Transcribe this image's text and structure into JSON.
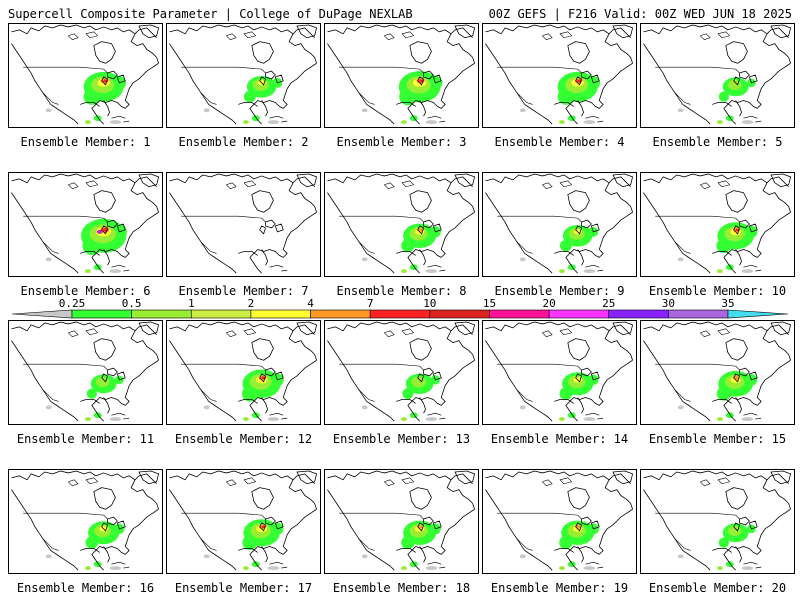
{
  "header": {
    "left": "Supercell Composite Parameter | College of DuPage NEXLAB",
    "right": "00Z GEFS | F216 Valid: 00Z WED JUN 18 2025"
  },
  "caption_prefix": "Ensemble Member: ",
  "members": [
    {
      "number": "1",
      "intensity": 0.8
    },
    {
      "number": "2",
      "intensity": 0.5
    },
    {
      "number": "3",
      "intensity": 0.85
    },
    {
      "number": "4",
      "intensity": 0.8
    },
    {
      "number": "5",
      "intensity": 0.4
    },
    {
      "number": "6",
      "intensity": 0.95
    },
    {
      "number": "7",
      "intensity": 0.0
    },
    {
      "number": "8",
      "intensity": 0.6
    },
    {
      "number": "9",
      "intensity": 0.5
    },
    {
      "number": "10",
      "intensity": 0.7
    },
    {
      "number": "11",
      "intensity": 0.4
    },
    {
      "number": "12",
      "intensity": 0.75
    },
    {
      "number": "13",
      "intensity": 0.45
    },
    {
      "number": "14",
      "intensity": 0.55
    },
    {
      "number": "15",
      "intensity": 0.65
    },
    {
      "number": "16",
      "intensity": 0.55
    },
    {
      "number": "17",
      "intensity": 0.7
    },
    {
      "number": "18",
      "intensity": 0.6
    },
    {
      "number": "19",
      "intensity": 0.6
    },
    {
      "number": "20",
      "intensity": 0.4
    }
  ],
  "colorbar": {
    "labels": [
      "0.25",
      "0.5",
      "1",
      "2",
      "4",
      "7",
      "10",
      "15",
      "20",
      "25",
      "30",
      "35"
    ],
    "colors": [
      "#c8c8c8",
      "#33ff33",
      "#99ee33",
      "#ccee44",
      "#ffff33",
      "#ff9922",
      "#ff2222",
      "#dd2222",
      "#ff1199",
      "#ff33ff",
      "#8822ff",
      "#aa66dd",
      "#44ddee"
    ]
  }
}
